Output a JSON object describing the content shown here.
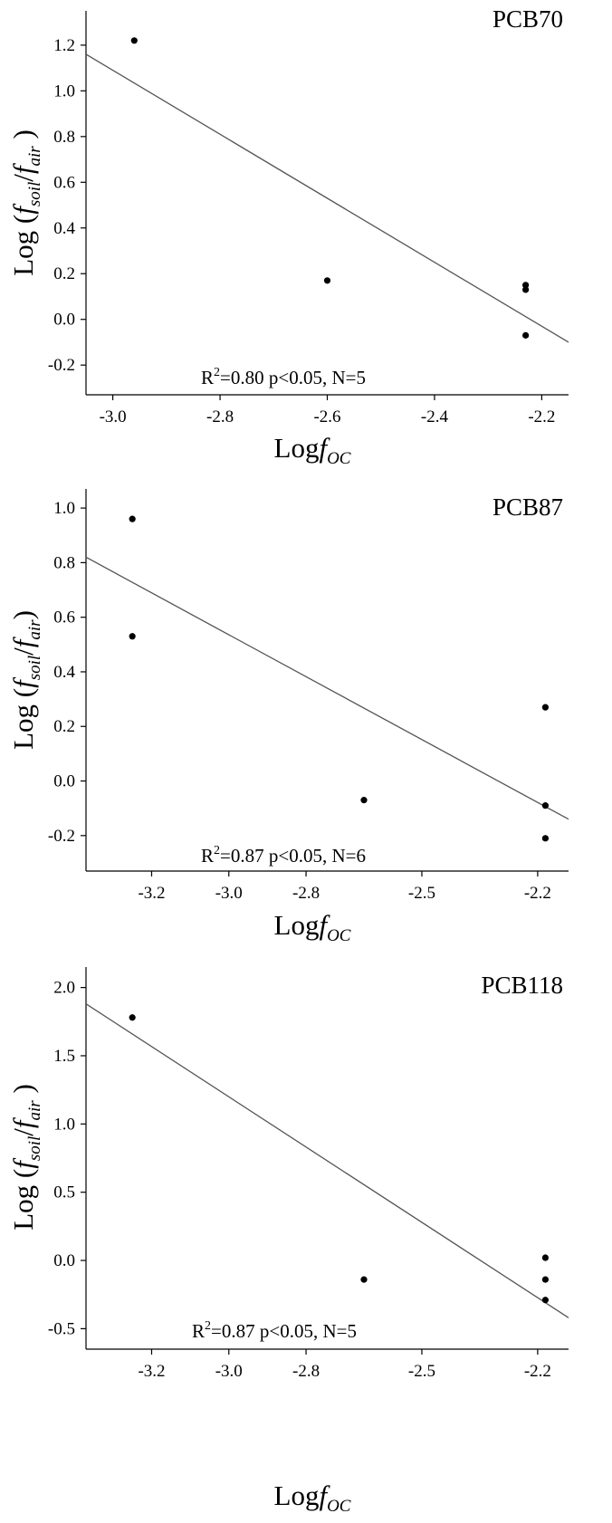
{
  "chart_data": [
    {
      "type": "scatter",
      "title": "PCB70",
      "ylabel_parts": {
        "main": "Log",
        "sub_soil": "soil",
        "sub_air": "air"
      },
      "xlabel_parts": {
        "main": "Log",
        "f": "f",
        "sub": "OC"
      },
      "annotation": {
        "r2_prefix": "R",
        "r2_sup": "2",
        "r2_text": "=0.80 p<0.05, N=5"
      },
      "xlim": [
        -3.05,
        -2.15
      ],
      "ylim": [
        -0.33,
        1.35
      ],
      "xticks": [
        -3.0,
        -2.8,
        -2.6,
        -2.4,
        -2.2
      ],
      "xtick_labels": [
        "-3.0",
        "-2.8",
        "-2.6",
        "-2.4",
        "-2.2"
      ],
      "yticks": [
        -0.2,
        0.0,
        0.2,
        0.4,
        0.6,
        0.8,
        1.0,
        1.2
      ],
      "ytick_labels": [
        "-0.2",
        "0.0",
        "0.2",
        "0.4",
        "0.6",
        "0.8",
        "1.0",
        "1.2"
      ],
      "points": [
        {
          "x": -2.96,
          "y": 1.22
        },
        {
          "x": -2.6,
          "y": 0.17
        },
        {
          "x": -2.23,
          "y": 0.15
        },
        {
          "x": -2.23,
          "y": 0.13
        },
        {
          "x": -2.23,
          "y": -0.07
        }
      ],
      "fit_line": {
        "x": [
          -3.05,
          -2.15
        ],
        "y": [
          1.16,
          -0.1
        ]
      }
    },
    {
      "type": "scatter",
      "title": "PCB87",
      "ylabel_parts": {
        "main": "Log",
        "sub_soil": "soil",
        "sub_air": "air"
      },
      "xlabel_parts": {
        "main": "Log",
        "f": "f",
        "sub": "OC"
      },
      "annotation": {
        "r2_prefix": "R",
        "r2_sup": "2",
        "r2_text": "=0.87 p<0.05, N=6"
      },
      "xlim": [
        -3.37,
        -2.12
      ],
      "ylim": [
        -0.33,
        1.07
      ],
      "xticks": [
        -3.2,
        -3.0,
        -2.8,
        -2.5,
        -2.2
      ],
      "xtick_labels": [
        "-3.2",
        "-3.0",
        "-2.8",
        "-2.5",
        "-2.2"
      ],
      "yticks": [
        -0.2,
        0.0,
        0.2,
        0.4,
        0.6,
        0.8,
        1.0
      ],
      "ytick_labels": [
        "-0.2",
        "0.0",
        "0.2",
        "0.4",
        "0.6",
        "0.8",
        "1.0"
      ],
      "points": [
        {
          "x": -3.25,
          "y": 0.96
        },
        {
          "x": -3.25,
          "y": 0.53
        },
        {
          "x": -2.65,
          "y": -0.07
        },
        {
          "x": -2.18,
          "y": 0.27
        },
        {
          "x": -2.18,
          "y": -0.09
        },
        {
          "x": -2.18,
          "y": -0.21
        }
      ],
      "fit_line": {
        "x": [
          -3.37,
          -2.12
        ],
        "y": [
          0.82,
          -0.14
        ]
      }
    },
    {
      "type": "scatter",
      "title": "PCB118",
      "ylabel_parts": {
        "main": "Log",
        "sub_soil": "soil",
        "sub_air": "air"
      },
      "xlabel_parts": {
        "main": "Log",
        "f": "f",
        "sub": "OC"
      },
      "annotation": {
        "r2_prefix": "R",
        "r2_sup": "2",
        "r2_text": "=0.87 p<0.05, N=5"
      },
      "xlim": [
        -3.37,
        -2.12
      ],
      "ylim": [
        -0.65,
        2.15
      ],
      "xticks": [
        -3.2,
        -3.0,
        -2.8,
        -2.5,
        -2.2
      ],
      "xtick_labels": [
        "-3.2",
        "-3.0",
        "-2.8",
        "-2.5",
        "-2.2"
      ],
      "yticks": [
        -0.5,
        0.0,
        0.5,
        1.0,
        1.5,
        2.0
      ],
      "ytick_labels": [
        "-0.5",
        "0.0",
        "0.5",
        "1.0",
        "1.5",
        "2.0"
      ],
      "points": [
        {
          "x": -3.25,
          "y": 1.78
        },
        {
          "x": -2.65,
          "y": -0.14
        },
        {
          "x": -2.18,
          "y": 0.02
        },
        {
          "x": -2.18,
          "y": -0.14
        },
        {
          "x": -2.18,
          "y": -0.29
        }
      ],
      "fit_line": {
        "x": [
          -3.37,
          -2.12
        ],
        "y": [
          1.88,
          -0.42
        ]
      }
    }
  ]
}
